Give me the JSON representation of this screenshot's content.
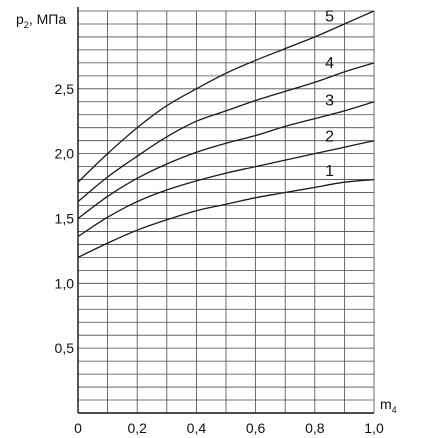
{
  "chart_data": {
    "type": "line",
    "ylabel": "p",
    "ylabel_sub": "2",
    "ylabel_unit": ", МПа",
    "xlabel": "m",
    "xlabel_sub": "4",
    "xlim": [
      0,
      1.0
    ],
    "ylim": [
      0,
      3.1
    ],
    "grid": true,
    "x_ticks": [
      {
        "value": 0,
        "label": "0"
      },
      {
        "value": 0.2,
        "label": "0,2"
      },
      {
        "value": 0.4,
        "label": "0,4"
      },
      {
        "value": 0.6,
        "label": "0,6"
      },
      {
        "value": 0.8,
        "label": "0,8"
      },
      {
        "value": 1.0,
        "label": "1,0"
      }
    ],
    "y_ticks": [
      {
        "value": 0.5,
        "label": "0,5"
      },
      {
        "value": 1.0,
        "label": "1,0"
      },
      {
        "value": 1.5,
        "label": "1,5"
      },
      {
        "value": 2.0,
        "label": "2,0"
      },
      {
        "value": 2.5,
        "label": "2,5"
      }
    ],
    "x_grid_step": 0.1,
    "y_grid_step": 0.1,
    "x": [
      0,
      0.1,
      0.2,
      0.3,
      0.4,
      0.5,
      0.6,
      0.7,
      0.8,
      0.9,
      1.0
    ],
    "series": [
      {
        "name": "1",
        "values": [
          1.2,
          1.31,
          1.41,
          1.49,
          1.56,
          1.61,
          1.66,
          1.7,
          1.74,
          1.78,
          1.8
        ]
      },
      {
        "name": "2",
        "values": [
          1.36,
          1.51,
          1.63,
          1.72,
          1.79,
          1.85,
          1.9,
          1.95,
          2.0,
          2.05,
          2.1
        ]
      },
      {
        "name": "3",
        "values": [
          1.5,
          1.67,
          1.81,
          1.92,
          2.01,
          2.08,
          2.14,
          2.21,
          2.27,
          2.33,
          2.4
        ]
      },
      {
        "name": "4",
        "values": [
          1.63,
          1.82,
          1.98,
          2.13,
          2.25,
          2.33,
          2.41,
          2.48,
          2.55,
          2.63,
          2.7
        ]
      },
      {
        "name": "5",
        "values": [
          1.78,
          2.0,
          2.2,
          2.37,
          2.5,
          2.62,
          2.72,
          2.81,
          2.9,
          3.0,
          3.1
        ]
      }
    ]
  }
}
